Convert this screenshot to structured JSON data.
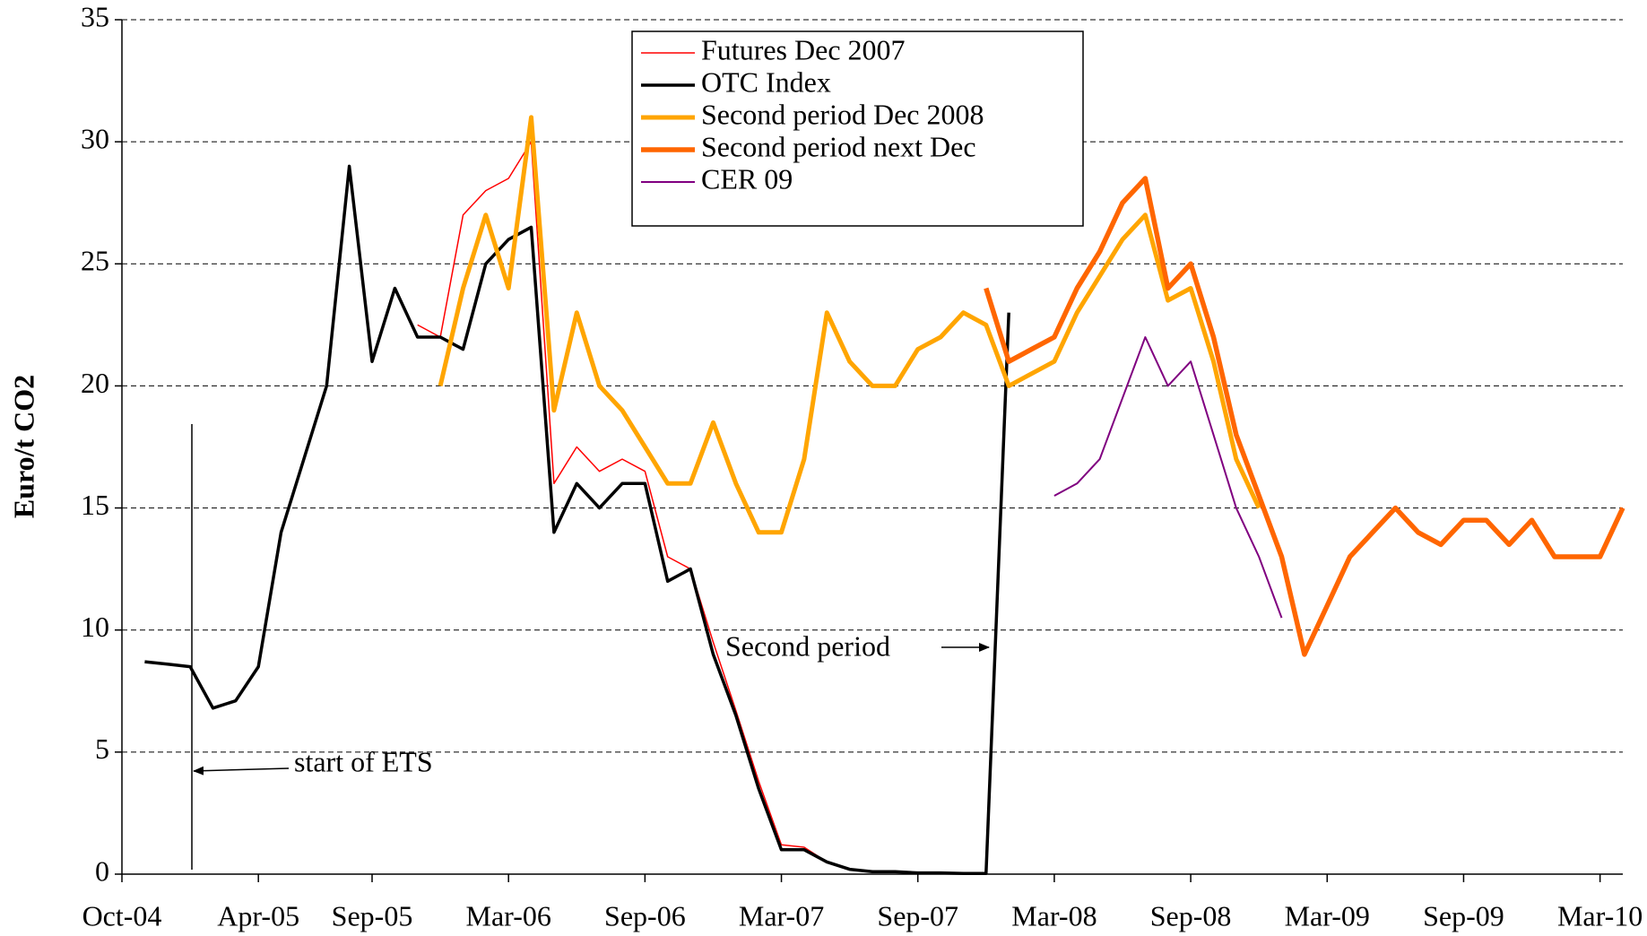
{
  "chart_data": {
    "type": "line",
    "y_label": "Euro/t CO2",
    "annotations": [
      "start of ETS",
      "Second period"
    ],
    "x": [
      "2004-11",
      "2004-12",
      "2005-01",
      "2005-02",
      "2005-03",
      "2005-04",
      "2005-05",
      "2005-06",
      "2005-07",
      "2005-08",
      "2005-09",
      "2005-10",
      "2005-11",
      "2005-12",
      "2006-01",
      "2006-02",
      "2006-03",
      "2006-04",
      "2006-05",
      "2006-06",
      "2006-07",
      "2006-08",
      "2006-09",
      "2006-10",
      "2006-11",
      "2006-12",
      "2007-01",
      "2007-02",
      "2007-03",
      "2007-04",
      "2007-05",
      "2007-06",
      "2007-07",
      "2007-08",
      "2007-09",
      "2007-10",
      "2007-11",
      "2007-12",
      "2008-01",
      "2008-02",
      "2008-03",
      "2008-04",
      "2008-05",
      "2008-06",
      "2008-07",
      "2008-08",
      "2008-09",
      "2008-10",
      "2008-11",
      "2008-12",
      "2009-01",
      "2009-02",
      "2009-03",
      "2009-04",
      "2009-05",
      "2009-06",
      "2009-07",
      "2009-08",
      "2009-09",
      "2009-10",
      "2009-11",
      "2009-12",
      "2010-01",
      "2010-02",
      "2010-03",
      "2010-04"
    ],
    "series": [
      {
        "name": "Futures Dec 2007",
        "color": "#ff0000",
        "values": [
          null,
          null,
          null,
          null,
          null,
          null,
          null,
          null,
          null,
          null,
          null,
          null,
          22.5,
          22,
          27,
          28,
          28.5,
          30,
          16,
          17.5,
          16.5,
          17,
          16.5,
          13,
          12.5,
          9.5,
          6.7,
          3.8,
          1.2,
          1.1,
          0.5,
          0.2,
          0.1,
          0.1,
          0.05,
          0.05,
          0.03,
          0.03,
          null,
          null,
          null,
          null,
          null,
          null,
          null,
          null,
          null,
          null,
          null,
          null,
          null,
          null,
          null,
          null,
          null,
          null,
          null,
          null,
          null,
          null,
          null,
          null,
          null,
          null,
          null,
          null
        ]
      },
      {
        "name": "OTC Index",
        "color": "#000000",
        "values": [
          8.7,
          8.6,
          8.5,
          6.8,
          7.1,
          8.5,
          14,
          17,
          20,
          29,
          21,
          24,
          22,
          22,
          21.5,
          25,
          26,
          26.5,
          14,
          16,
          15,
          16,
          16,
          12,
          12.5,
          9,
          6.5,
          3.5,
          1,
          1,
          0.5,
          0.2,
          0.1,
          0.1,
          0.05,
          0.05,
          0.03,
          0.03,
          23,
          null,
          null,
          null,
          null,
          null,
          null,
          null,
          null,
          null,
          null,
          null,
          null,
          null,
          null,
          null,
          null,
          null,
          null,
          null,
          null,
          null,
          null,
          null,
          null,
          null,
          null,
          null
        ]
      },
      {
        "name": "Second period Dec 2008",
        "color": "#ffa500",
        "values": [
          null,
          null,
          null,
          null,
          null,
          null,
          null,
          null,
          null,
          null,
          null,
          null,
          null,
          20,
          24,
          27,
          24,
          31,
          19,
          23,
          20,
          19,
          17.5,
          16,
          16,
          18.5,
          16,
          14,
          14,
          17,
          23,
          21,
          20,
          20,
          21.5,
          22,
          23,
          22.5,
          20,
          20.5,
          21,
          23,
          24.5,
          26,
          27,
          23.5,
          24,
          21,
          17,
          15,
          null,
          null,
          null,
          null,
          null,
          null,
          null,
          null,
          null,
          null,
          null,
          null,
          null,
          null,
          null,
          null
        ]
      },
      {
        "name": "Second period next Dec",
        "color": "#ff6600",
        "values": [
          null,
          null,
          null,
          null,
          null,
          null,
          null,
          null,
          null,
          null,
          null,
          null,
          null,
          null,
          null,
          null,
          null,
          null,
          null,
          null,
          null,
          null,
          null,
          null,
          null,
          null,
          null,
          null,
          null,
          null,
          null,
          null,
          null,
          null,
          null,
          null,
          null,
          24,
          21,
          21.5,
          22,
          24,
          25.5,
          27.5,
          28.5,
          24,
          25,
          22,
          18,
          15.5,
          13,
          9,
          11,
          13,
          14,
          15,
          14,
          13.5,
          14.5,
          14.5,
          13.5,
          14.5,
          13,
          13,
          13,
          15
        ]
      },
      {
        "name": "CER 09",
        "color": "#800080",
        "values": [
          null,
          null,
          null,
          null,
          null,
          null,
          null,
          null,
          null,
          null,
          null,
          null,
          null,
          null,
          null,
          null,
          null,
          null,
          null,
          null,
          null,
          null,
          null,
          null,
          null,
          null,
          null,
          null,
          null,
          null,
          null,
          null,
          null,
          null,
          null,
          null,
          null,
          null,
          null,
          null,
          15.5,
          16,
          17,
          19.5,
          22,
          20,
          21,
          18,
          15,
          13,
          10.5,
          null,
          null,
          null,
          null,
          null,
          null,
          null,
          null,
          null,
          null,
          null,
          null,
          null,
          null,
          null
        ]
      }
    ],
    "xlim": [
      "2004-10",
      "2010-04"
    ],
    "xticks": [
      {
        "value": "2004-10",
        "label": "Oct-04"
      },
      {
        "value": "2005-04",
        "label": "Apr-05"
      },
      {
        "value": "2005-09",
        "label": "Sep-05"
      },
      {
        "value": "2006-03",
        "label": "Mar-06"
      },
      {
        "value": "2006-09",
        "label": "Sep-06"
      },
      {
        "value": "2007-03",
        "label": "Mar-07"
      },
      {
        "value": "2007-09",
        "label": "Sep-07"
      },
      {
        "value": "2008-03",
        "label": "Mar-08"
      },
      {
        "value": "2008-09",
        "label": "Sep-08"
      },
      {
        "value": "2009-03",
        "label": "Mar-09"
      },
      {
        "value": "2009-09",
        "label": "Sep-09"
      },
      {
        "value": "2010-03",
        "label": "Mar-10"
      }
    ],
    "ylim": [
      0,
      35
    ],
    "yticks": [
      0,
      5,
      10,
      15,
      20,
      25,
      30,
      35
    ],
    "grid": true
  }
}
